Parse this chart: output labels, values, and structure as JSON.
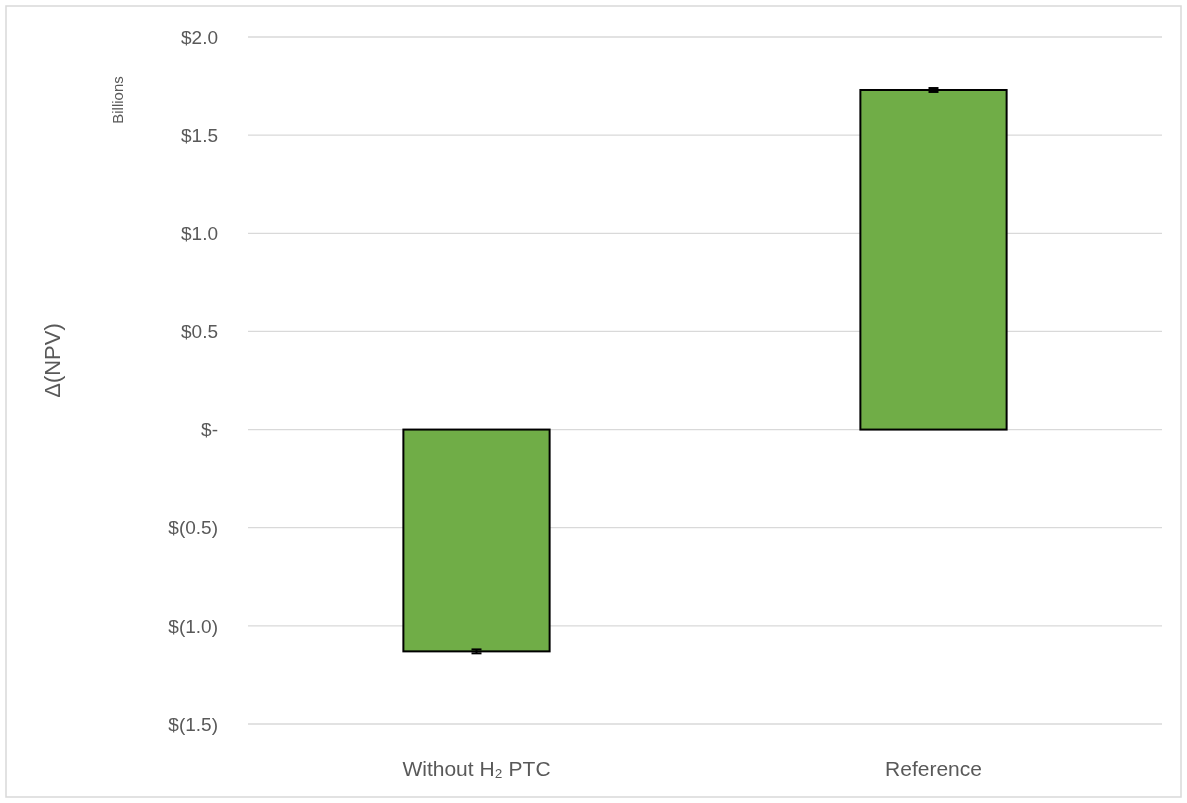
{
  "chart_data": {
    "type": "bar",
    "ylabel": "Δ(NPV)",
    "annotations": [
      "Billions"
    ],
    "categories": [
      "Without H₂ PTC",
      "Reference"
    ],
    "values": [
      -1.13,
      1.73
    ],
    "errors": [
      0.01,
      0.01
    ],
    "color": "#70ad47",
    "ylim": [
      -1.5,
      2.0
    ],
    "yticks": [
      {
        "value": -1.5,
        "label": "$(1.5)"
      },
      {
        "value": -1.0,
        "label": "$(1.0)"
      },
      {
        "value": -0.5,
        "label": "$(0.5)"
      },
      {
        "value": 0,
        "label": "$-"
      },
      {
        "value": 0.5,
        "label": "$0.5"
      },
      {
        "value": 1.0,
        "label": "$1.0"
      },
      {
        "value": 1.5,
        "label": "$1.5"
      },
      {
        "value": 2.0,
        "label": "$2.0"
      }
    ],
    "grid": "y"
  }
}
